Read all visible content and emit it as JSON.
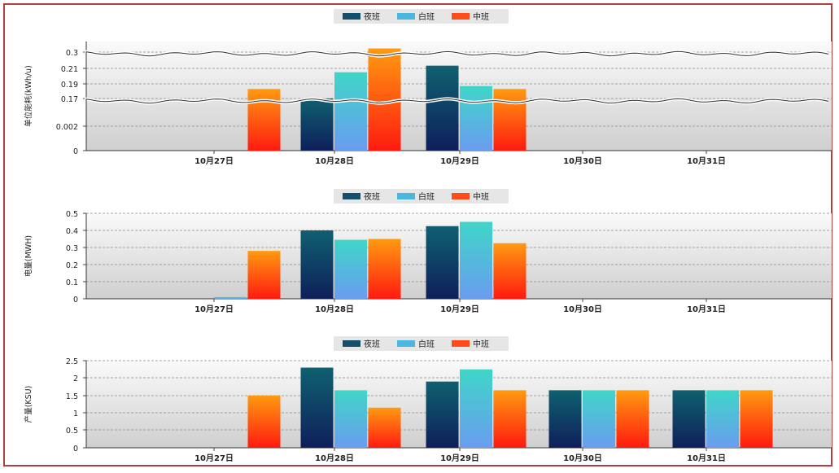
{
  "colors": {
    "night_shift": "#14506b",
    "day_shift": "#4ab8de",
    "middle_shift": "#ff4a1a"
  },
  "legend": [
    "夜班",
    "白班",
    "中班"
  ],
  "chart_data": [
    {
      "type": "bar",
      "ylabel": "单位能耗(kWh/u)",
      "y_ticks": [
        "0.3",
        "0.21",
        "0.19",
        "0.17",
        "0.002",
        "0"
      ],
      "categories": [
        "10月27日",
        "10月28日",
        "10月29日",
        "10月30日",
        "10月31日"
      ],
      "series": [
        {
          "name": "夜班",
          "values": [
            null,
            0.17,
            0.225,
            null,
            null
          ]
        },
        {
          "name": "白班",
          "values": [
            null,
            0.205,
            0.187,
            null,
            null
          ]
        },
        {
          "name": "中班",
          "values": [
            0.183,
            0.32,
            0.183,
            null,
            null
          ]
        }
      ],
      "note_scale": "non-linear axis, tick labels as printed"
    },
    {
      "type": "bar",
      "ylabel": "电量(MWH)",
      "y_ticks": [
        "0.5",
        "0.4",
        "0.3",
        "0.2",
        "0.1",
        "0"
      ],
      "ylim": [
        0,
        0.5
      ],
      "categories": [
        "10月27日",
        "10月28日",
        "10月29日",
        "10月30日",
        "10月31日"
      ],
      "series": [
        {
          "name": "夜班",
          "values": [
            null,
            0.4,
            0.425,
            null,
            null
          ]
        },
        {
          "name": "白班",
          "values": [
            0.01,
            0.345,
            0.45,
            null,
            null
          ]
        },
        {
          "name": "中班",
          "values": [
            0.28,
            0.35,
            0.325,
            null,
            null
          ]
        }
      ]
    },
    {
      "type": "bar",
      "ylabel": "产量(KSU)",
      "y_ticks": [
        "2.5",
        "2",
        "1.5",
        "1",
        "0.5",
        "0"
      ],
      "ylim": [
        0,
        2.5
      ],
      "categories": [
        "10月27日",
        "10月28日",
        "10月29日",
        "10月30日",
        "10月31日"
      ],
      "series": [
        {
          "name": "夜班",
          "values": [
            null,
            2.3,
            1.9,
            1.65,
            1.65
          ]
        },
        {
          "name": "白班",
          "values": [
            null,
            1.65,
            2.25,
            1.65,
            1.65
          ]
        },
        {
          "name": "中班",
          "values": [
            1.5,
            1.15,
            1.65,
            1.65,
            1.65
          ]
        }
      ]
    }
  ]
}
